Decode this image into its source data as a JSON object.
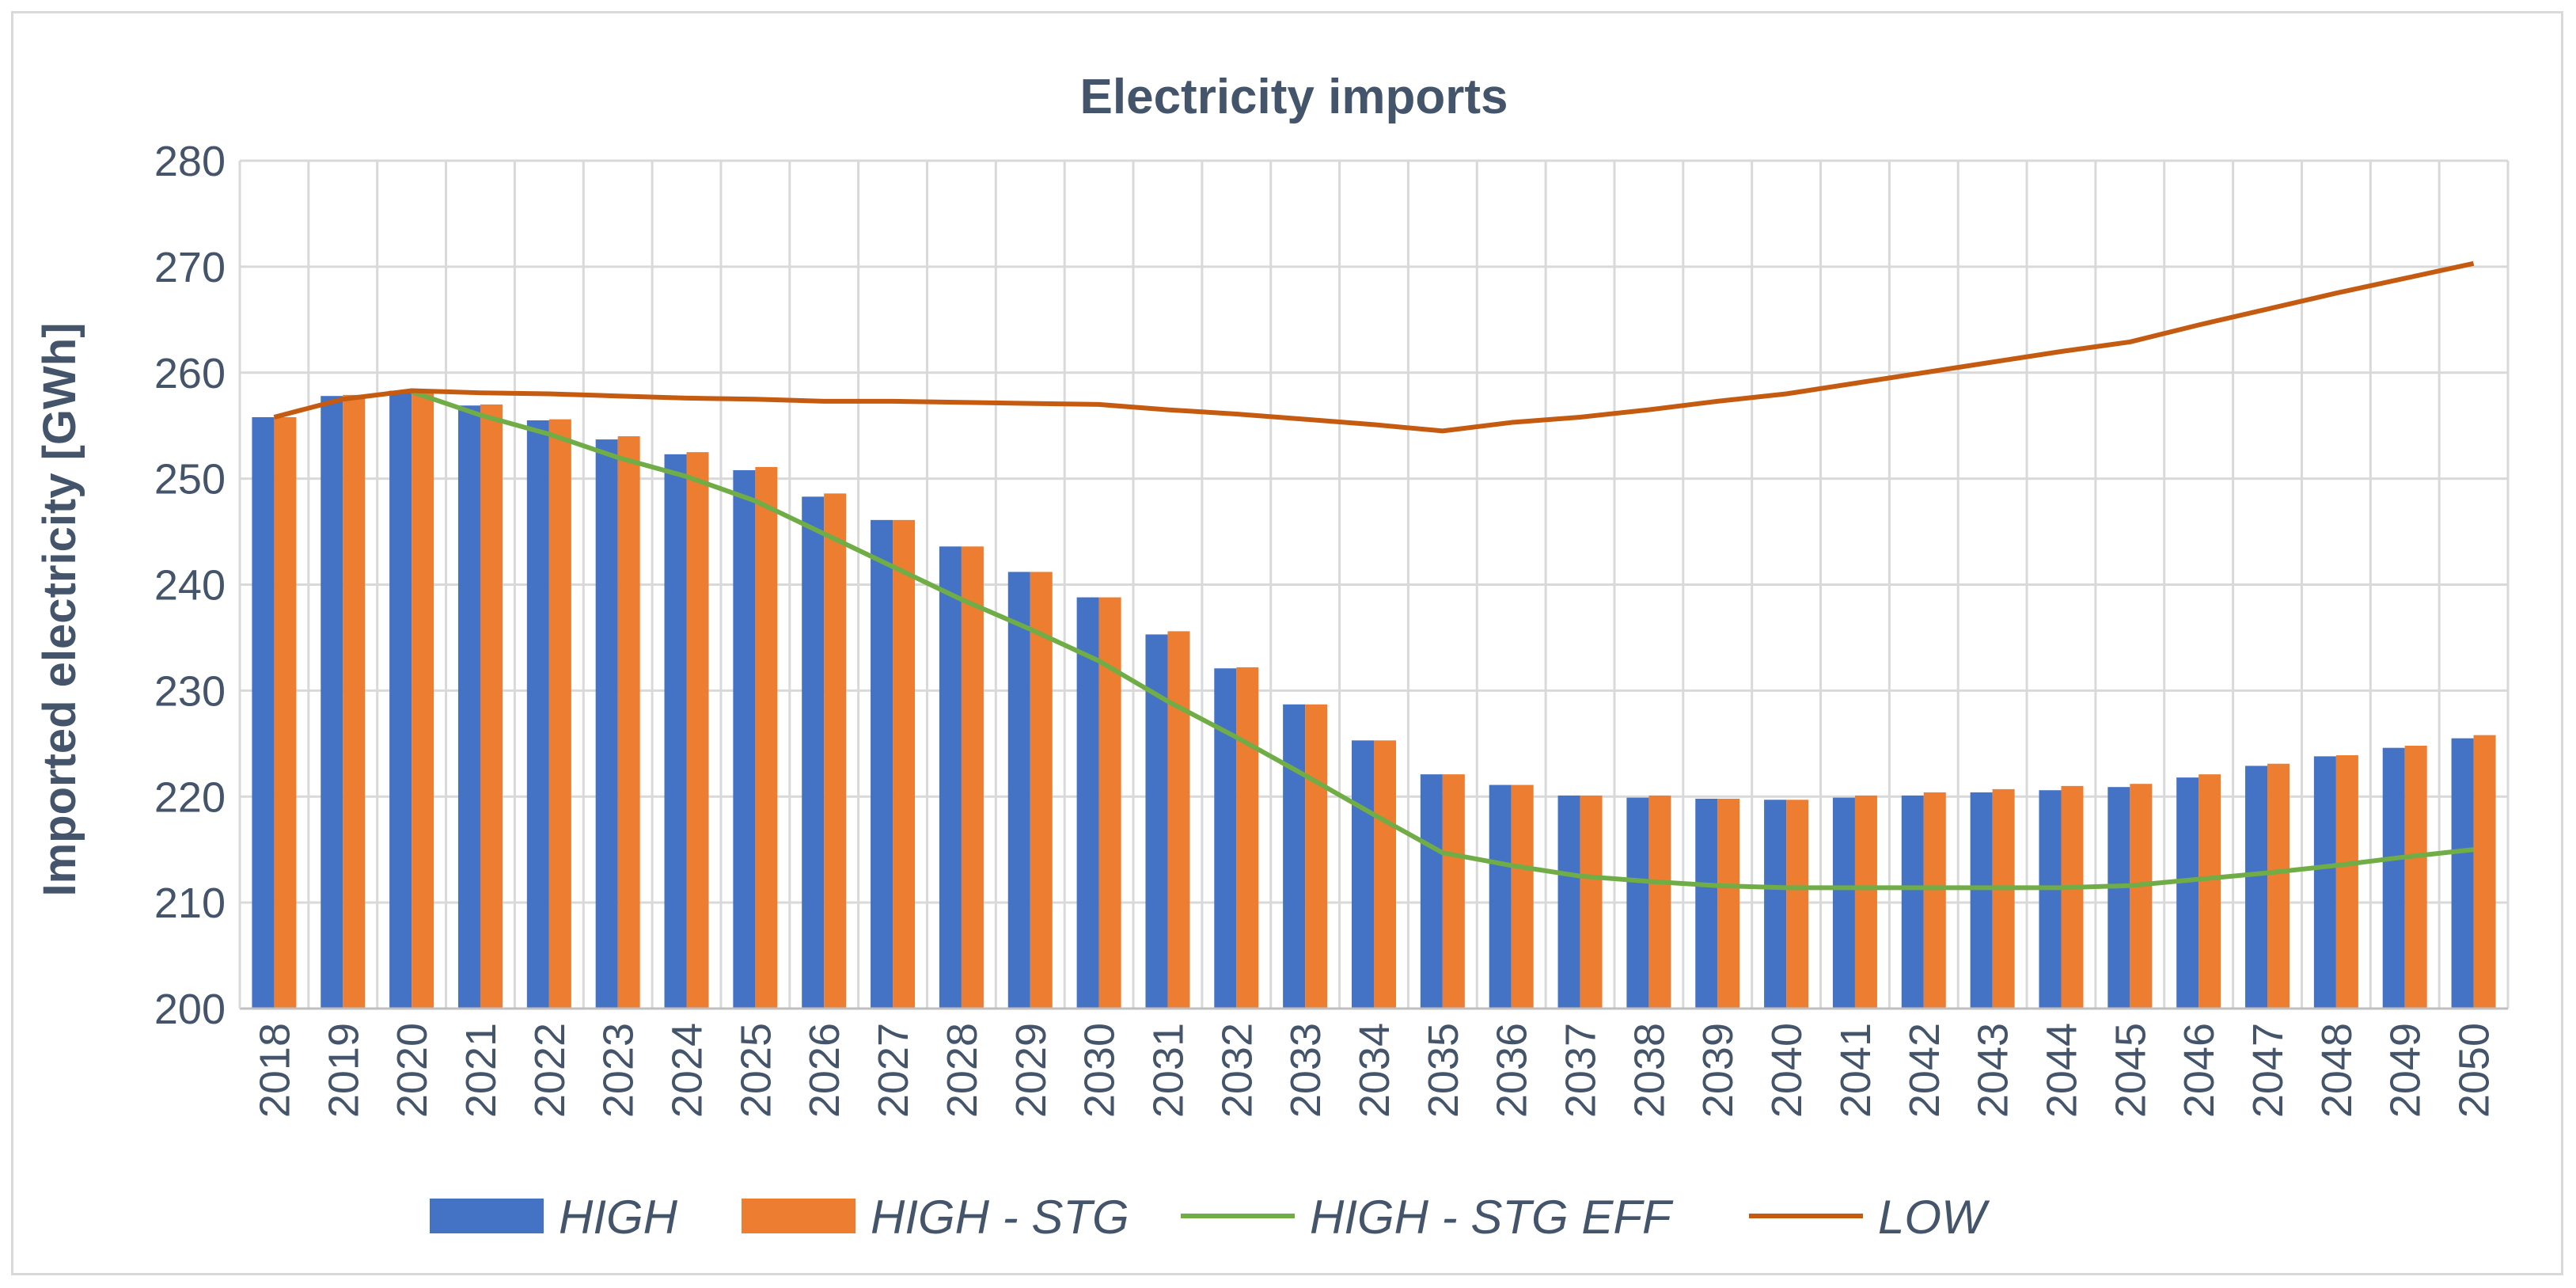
{
  "chart_data": {
    "type": "bar",
    "title": "Electricity imports",
    "xlabel": "",
    "ylabel": "Imported electricity [GWh]",
    "ylim": [
      200,
      280
    ],
    "yticks": [
      "200",
      "210",
      "220",
      "230",
      "240",
      "250",
      "260",
      "270",
      "280"
    ],
    "grid": true,
    "legend_position": "bottom",
    "categories": [
      "2018",
      "2019",
      "2020",
      "2021",
      "2022",
      "2023",
      "2024",
      "2025",
      "2026",
      "2027",
      "2028",
      "2029",
      "2030",
      "2031",
      "2032",
      "2033",
      "2034",
      "2035",
      "2036",
      "2037",
      "2038",
      "2039",
      "2040",
      "2041",
      "2042",
      "2043",
      "2044",
      "2045",
      "2046",
      "2047",
      "2048",
      "2049",
      "2050"
    ],
    "series": [
      {
        "name": "HIGH",
        "kind": "bar",
        "color": "#4472c4",
        "values": [
          255.8,
          257.8,
          258.3,
          256.9,
          255.5,
          253.7,
          252.3,
          250.8,
          248.3,
          246.1,
          243.6,
          241.2,
          238.8,
          235.3,
          232.1,
          228.7,
          225.3,
          222.1,
          221.1,
          220.1,
          219.9,
          219.8,
          219.7,
          219.9,
          220.1,
          220.4,
          220.6,
          220.9,
          221.8,
          222.9,
          223.8,
          224.6,
          225.5
        ]
      },
      {
        "name": "HIGH - STG",
        "kind": "bar",
        "color": "#ed7d31",
        "values": [
          255.8,
          257.9,
          258.4,
          257.0,
          255.6,
          254.0,
          252.5,
          251.1,
          248.6,
          246.1,
          243.6,
          241.2,
          238.8,
          235.6,
          232.2,
          228.7,
          225.3,
          222.1,
          221.1,
          220.1,
          220.1,
          219.8,
          219.7,
          220.1,
          220.4,
          220.7,
          221.0,
          221.2,
          222.1,
          223.1,
          223.9,
          224.8,
          225.8
        ]
      },
      {
        "name": "HIGH - STG EFF",
        "kind": "line",
        "color": "#70ad47",
        "values": [
          null,
          null,
          258.2,
          256.0,
          254.2,
          252.0,
          250.2,
          247.9,
          244.8,
          241.7,
          238.6,
          235.8,
          232.8,
          229.0,
          225.6,
          222.0,
          218.3,
          214.7,
          213.5,
          212.5,
          212.0,
          211.6,
          211.4,
          211.4,
          211.4,
          211.4,
          211.4,
          211.6,
          212.2,
          212.8,
          213.5,
          214.3,
          215.0
        ]
      },
      {
        "name": "LOW",
        "kind": "line",
        "color": "#c55a11",
        "values": [
          255.8,
          257.5,
          258.3,
          258.1,
          258.0,
          257.8,
          257.6,
          257.5,
          257.3,
          257.3,
          257.2,
          257.1,
          257.0,
          256.5,
          256.1,
          255.6,
          255.1,
          254.5,
          255.3,
          255.8,
          256.5,
          257.3,
          258.0,
          259.0,
          260.0,
          261.0,
          262.0,
          262.9,
          264.5,
          266.0,
          267.5,
          268.9,
          270.3
        ]
      }
    ]
  }
}
